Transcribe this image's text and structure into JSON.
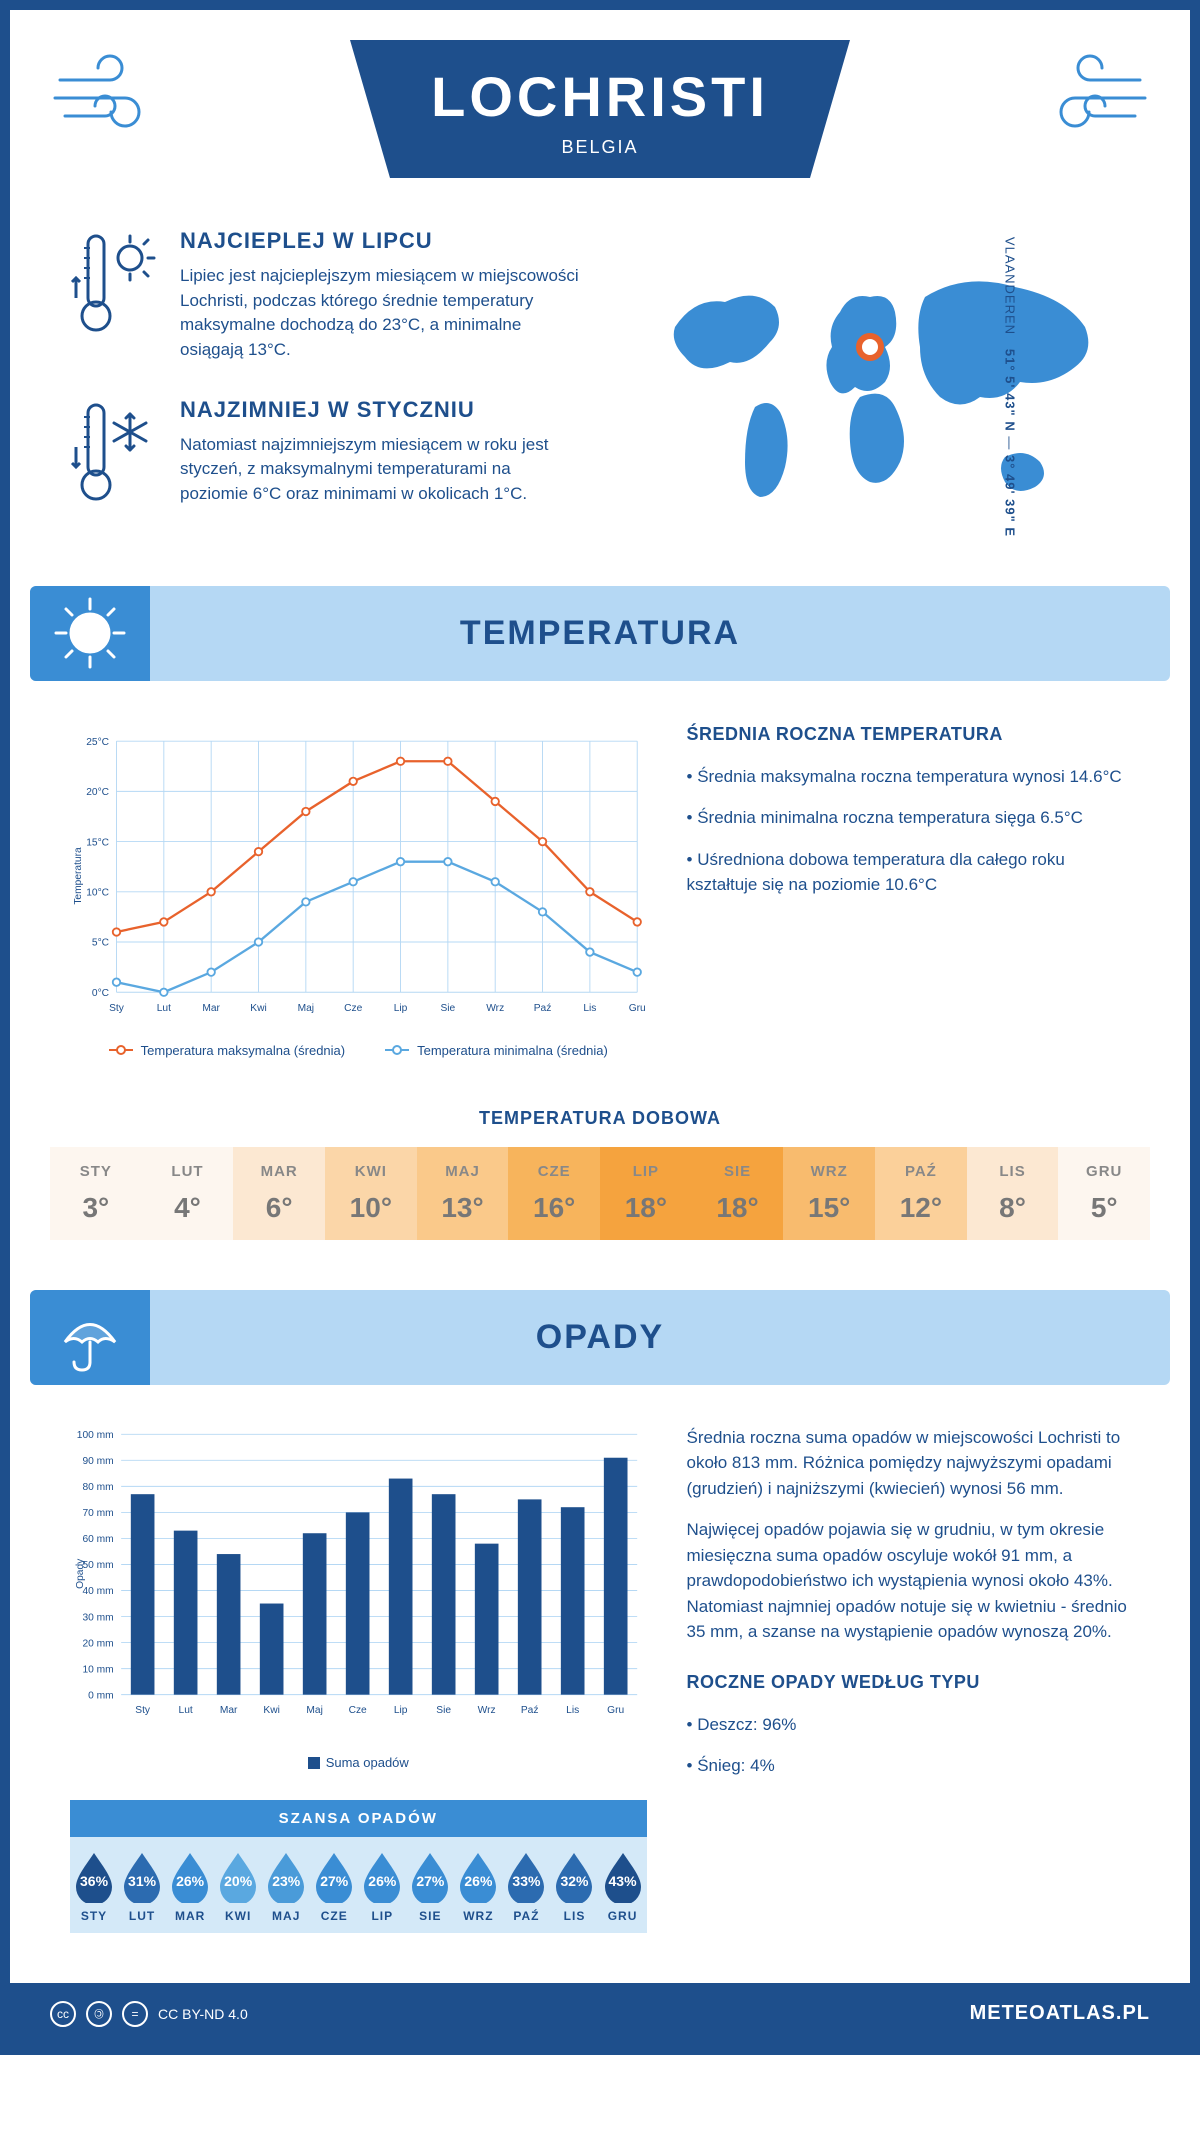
{
  "header": {
    "title": "LOCHRISTI",
    "subtitle": "BELGIA"
  },
  "coords": {
    "region": "VLAANDEREN",
    "lat": "51° 5' 43\" N",
    "lon": "3° 49' 39\" E"
  },
  "facts": {
    "warm": {
      "heading": "NAJCIEPLEJ W LIPCU",
      "body": "Lipiec jest najcieplejszym miesiącem w miejscowości Lochristi, podczas którego średnie temperatury maksymalne dochodzą do 23°C, a minimalne osiągają 13°C."
    },
    "cold": {
      "heading": "NAJZIMNIEJ W STYCZNIU",
      "body": "Natomiast najzimniejszym miesiącem w roku jest styczeń, z maksymalnymi temperaturami na poziomie 6°C oraz minimami w okolicach 1°C."
    }
  },
  "sections": {
    "temperature": "TEMPERATURA",
    "precip": "OPADY"
  },
  "months_short": [
    "Sty",
    "Lut",
    "Mar",
    "Kwi",
    "Maj",
    "Cze",
    "Lip",
    "Sie",
    "Wrz",
    "Paź",
    "Lis",
    "Gru"
  ],
  "months_upper": [
    "STY",
    "LUT",
    "MAR",
    "KWI",
    "MAJ",
    "CZE",
    "LIP",
    "SIE",
    "WRZ",
    "PAŹ",
    "LIS",
    "GRU"
  ],
  "temp_chart": {
    "type": "line",
    "y_label": "Temperatura",
    "y_ticks": [
      "0°C",
      "5°C",
      "10°C",
      "15°C",
      "20°C",
      "25°C"
    ],
    "ylim": [
      0,
      25
    ],
    "series": {
      "max": {
        "label": "Temperatura maksymalna (średnia)",
        "color": "#e8622c",
        "values": [
          6,
          7,
          10,
          14,
          18,
          21,
          23,
          23,
          19,
          15,
          10,
          7
        ]
      },
      "min": {
        "label": "Temperatura minimalna (średnia)",
        "color": "#5aa8e0",
        "values": [
          1,
          0,
          2,
          5,
          9,
          11,
          13,
          13,
          11,
          8,
          4,
          2
        ]
      }
    },
    "grid_color": "#b5d8f4"
  },
  "temp_text": {
    "heading": "ŚREDNIA ROCZNA TEMPERATURA",
    "items": [
      "Średnia maksymalna roczna temperatura wynosi 14.6°C",
      "Średnia minimalna roczna temperatura sięga 6.5°C",
      "Uśredniona dobowa temperatura dla całego roku kształtuje się na poziomie 10.6°C"
    ]
  },
  "daily": {
    "heading": "TEMPERATURA DOBOWA",
    "values": [
      "3°",
      "4°",
      "6°",
      "10°",
      "13°",
      "16°",
      "18°",
      "18°",
      "15°",
      "12°",
      "8°",
      "5°"
    ],
    "colors": [
      "#fdf6ef",
      "#fdf6ef",
      "#fce8d2",
      "#fbd6a8",
      "#fac98a",
      "#f7b45c",
      "#f5a33e",
      "#f5a33e",
      "#f8bb6e",
      "#fbd09a",
      "#fce8d2",
      "#fdf6ef"
    ]
  },
  "precip_chart": {
    "type": "bar",
    "y_label": "Opady",
    "y_ticks": [
      0,
      10,
      20,
      30,
      40,
      50,
      60,
      70,
      80,
      90,
      100
    ],
    "ylim": [
      0,
      100
    ],
    "y_unit": " mm",
    "color": "#1e4f8c",
    "values": [
      77,
      63,
      54,
      35,
      62,
      70,
      83,
      77,
      58,
      75,
      72,
      91
    ],
    "legend": "Suma opadów"
  },
  "precip_text": {
    "p1": "Średnia roczna suma opadów w miejscowości Lochristi to około 813 mm. Różnica pomiędzy najwyższymi opadami (grudzień) i najniższymi (kwiecień) wynosi 56 mm.",
    "p2": "Najwięcej opadów pojawia się w grudniu, w tym okresie miesięczna suma opadów oscyluje wokół 91 mm, a prawdopodobieństwo ich wystąpienia wynosi około 43%. Natomiast najmniej opadów notuje się w kwietniu - średnio 35 mm, a szanse na wystąpienie opadów wynoszą 20%.",
    "type_heading": "ROCZNE OPADY WEDŁUG TYPU",
    "type_items": [
      "Deszcz: 96%",
      "Śnieg: 4%"
    ]
  },
  "chance": {
    "heading": "SZANSA OPADÓW",
    "values": [
      "36%",
      "31%",
      "26%",
      "20%",
      "23%",
      "27%",
      "26%",
      "27%",
      "26%",
      "33%",
      "32%",
      "43%"
    ],
    "colors": [
      "#1e4f8c",
      "#2c6bb0",
      "#3a8dd4",
      "#5aa8e0",
      "#4a9bd9",
      "#3a8dd4",
      "#3a8dd4",
      "#3a8dd4",
      "#3a8dd4",
      "#2c6bb0",
      "#2c6bb0",
      "#1e4f8c"
    ]
  },
  "footer": {
    "license": "CC BY-ND 4.0",
    "brand": "METEOATLAS.PL"
  },
  "colors": {
    "primary": "#1e4f8c",
    "accent": "#3a8dd4",
    "light": "#b5d8f4",
    "map_marker": "#e8622c"
  }
}
